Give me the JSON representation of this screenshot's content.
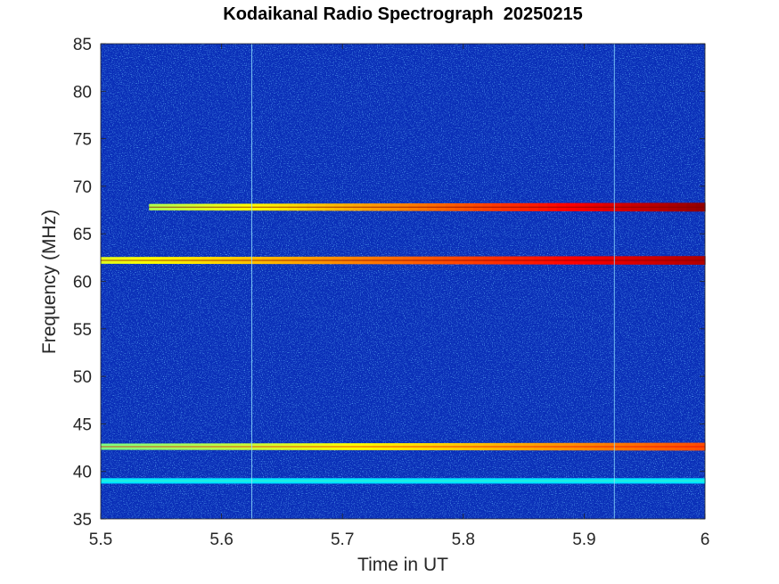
{
  "chart_data": {
    "type": "heatmap",
    "title": "Kodaikanal Radio Spectrograph  20250215",
    "xlabel": "Time in UT",
    "ylabel": "Frequency (MHz)",
    "xlim": [
      5.5,
      6.0
    ],
    "ylim": [
      35,
      85
    ],
    "xticks": [
      "5.5",
      "5.6",
      "5.7",
      "5.8",
      "5.9",
      "6"
    ],
    "yticks": [
      "35",
      "40",
      "45",
      "50",
      "55",
      "60",
      "65",
      "70",
      "75",
      "80",
      "85"
    ],
    "colormap": "jet",
    "background_color": "#0a2fb8",
    "features": [
      {
        "kind": "horizontal_band",
        "freq_mhz": 67.8,
        "t_start": 5.54,
        "t_end": 6.0,
        "intensity_start": 0.55,
        "intensity_end": 0.98
      },
      {
        "kind": "horizontal_band",
        "freq_mhz": 62.2,
        "t_start": 5.5,
        "t_end": 6.0,
        "intensity_start": 0.6,
        "intensity_end": 0.95
      },
      {
        "kind": "horizontal_band",
        "freq_mhz": 42.6,
        "t_start": 5.5,
        "t_end": 6.0,
        "intensity_start": 0.5,
        "intensity_end": 0.8
      },
      {
        "kind": "horizontal_band",
        "freq_mhz": 39.0,
        "t_start": 5.5,
        "t_end": 6.0,
        "intensity_start": 0.35,
        "intensity_end": 0.35
      },
      {
        "kind": "vertical_line",
        "t": 5.625
      },
      {
        "kind": "vertical_line",
        "t": 5.925
      }
    ]
  }
}
